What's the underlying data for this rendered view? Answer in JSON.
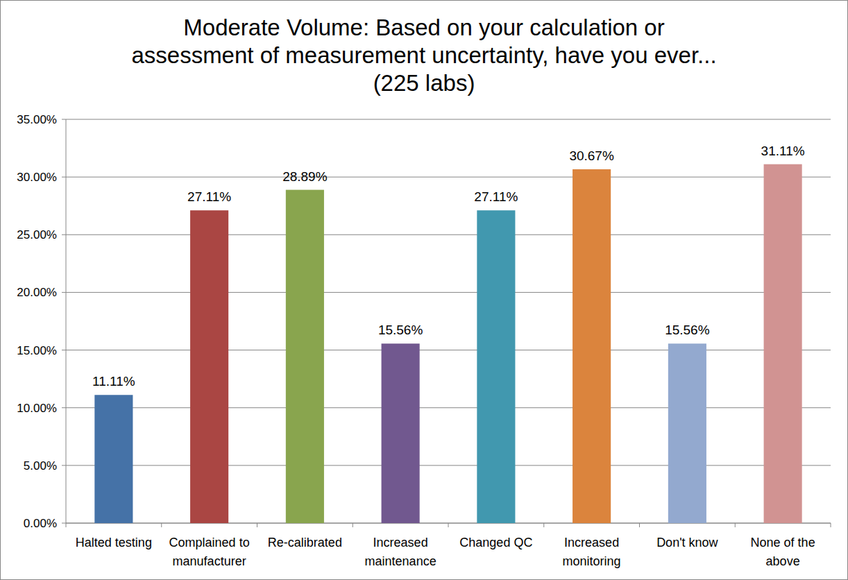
{
  "chart_data": {
    "type": "bar",
    "title": [
      "Moderate Volume: Based on your calculation or",
      "assessment of measurement uncertainty, have you ever...",
      "(225 labs)"
    ],
    "categories": [
      "Halted testing",
      "Complained to manufacturer",
      "Re-calibrated",
      "Increased maintenance",
      "Changed QC",
      "Increased monitoring",
      "Don't know",
      "None of the above"
    ],
    "values": [
      11.11,
      27.11,
      28.89,
      15.56,
      27.11,
      30.67,
      15.56,
      31.11
    ],
    "value_labels": [
      "11.11%",
      "27.11%",
      "28.89%",
      "15.56%",
      "27.11%",
      "30.67%",
      "15.56%",
      "31.11%"
    ],
    "colors": [
      "#4572a7",
      "#aa4643",
      "#89a54e",
      "#71588f",
      "#4198af",
      "#db843d",
      "#93a9cf",
      "#d19392"
    ],
    "ylim": [
      0,
      35
    ],
    "yticks": [
      {
        "value": 0,
        "label": "0.00%"
      },
      {
        "value": 5,
        "label": "5.00%"
      },
      {
        "value": 10,
        "label": "10.00%"
      },
      {
        "value": 15,
        "label": "15.00%"
      },
      {
        "value": 20,
        "label": "20.00%"
      },
      {
        "value": 25,
        "label": "25.00%"
      },
      {
        "value": 30,
        "label": "30.00%"
      },
      {
        "value": 35,
        "label": "35.00%"
      }
    ],
    "grid": true,
    "data_labels": true
  }
}
